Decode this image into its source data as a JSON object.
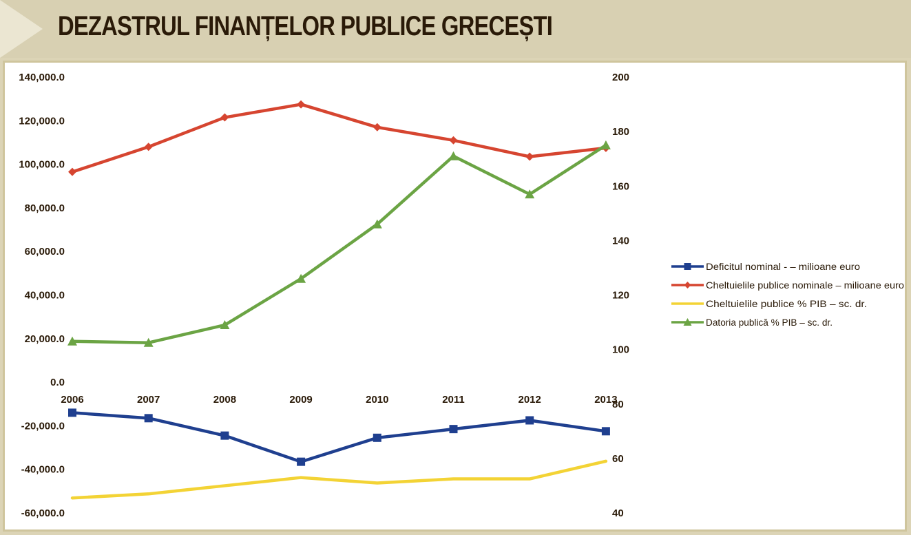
{
  "header": {
    "title": "DEZASTRUL FINANȚELOR PUBLICE GRECEȘTI"
  },
  "chart_data": {
    "type": "line",
    "title": "DEZASTRUL FINANȚELOR PUBLICE GRECEȘTI",
    "categories": [
      "2006",
      "2007",
      "2008",
      "2009",
      "2010",
      "2011",
      "2012",
      "2013"
    ],
    "y_left": {
      "ylim": [
        -60000,
        140000
      ],
      "ticks": [
        "140,000.0",
        "120,000.0",
        "100,000.0",
        "80,000.0",
        "60,000.0",
        "40,000.0",
        "20,000.0",
        "0.0",
        "-20,000.0",
        "-40,000.0",
        "-60,000.0"
      ],
      "tick_values": [
        140000,
        120000,
        100000,
        80000,
        60000,
        40000,
        20000,
        0,
        -20000,
        -40000,
        -60000
      ]
    },
    "y_right": {
      "ylim": [
        40,
        200
      ],
      "ticks": [
        "200",
        "180",
        "160",
        "140",
        "120",
        "100",
        "80",
        "60",
        "40"
      ],
      "tick_values": [
        200,
        180,
        160,
        140,
        120,
        100,
        80,
        60,
        40
      ]
    },
    "grid": false,
    "legend_position": "right",
    "series": [
      {
        "name": "Deficitul nominal - – milioane euro",
        "axis": "left",
        "marker": "square",
        "color": "#1f3f8f",
        "values": [
          -14000,
          -16500,
          -24500,
          -36500,
          -25500,
          -21500,
          -17500,
          -22500
        ]
      },
      {
        "name": "Cheltuielile publice nominale – milioane euro",
        "axis": "left",
        "marker": "diamond",
        "color": "#d64530",
        "values": [
          96500,
          108000,
          121500,
          127500,
          117000,
          111000,
          103500,
          107500
        ]
      },
      {
        "name": "Cheltuielile publice % PIB – sc. dr.",
        "axis": "right",
        "marker": "none",
        "color": "#f3d335",
        "values": [
          45.5,
          47,
          50,
          53,
          51,
          52.5,
          52.5,
          59
        ]
      },
      {
        "name": "Datoria publică % PIB – sc. dr.",
        "axis": "right",
        "marker": "triangle",
        "color": "#6ba444",
        "values": [
          103,
          102.5,
          109,
          126,
          146,
          171,
          157,
          175
        ]
      }
    ]
  }
}
